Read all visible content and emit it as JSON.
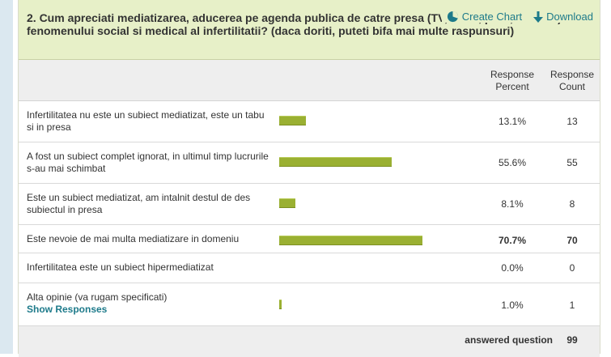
{
  "question": {
    "title": "2. Cum apreciati mediatizarea, aducerea pe agenda publica de catre presa (TV, radio, print, internet) a fenomenului social si medical al infertilitatii? (daca doriti, puteti bifa mai multe raspunsuri)",
    "create_chart_label": "Create Chart",
    "download_label": "Download"
  },
  "table": {
    "header_percent": "Response Percent",
    "header_count": "Response Count",
    "rows": [
      {
        "label": "Infertilitatea nu este un subiect mediatizat, este un tabu si in presa",
        "percent_text": "13.1%",
        "count": "13",
        "percent_value": 13.1
      },
      {
        "label": "A fost un subiect complet ignorat, in ultimul timp lucrurile s-au mai schimbat",
        "percent_text": "55.6%",
        "count": "55",
        "percent_value": 55.6
      },
      {
        "label": "Este un subiect mediatizat, am intalnit destul de des subiectul in presa",
        "percent_text": "8.1%",
        "count": "8",
        "percent_value": 8.1
      },
      {
        "label": "Este nevoie de mai multa mediatizare in domeniu",
        "percent_text": "70.7%",
        "count": "70",
        "percent_value": 70.7
      },
      {
        "label": "Infertilitatea este un subiect hipermediatizat",
        "percent_text": "0.0%",
        "count": "0",
        "percent_value": 0.0
      },
      {
        "label": "Alta opinie (va rugam specificati)",
        "percent_text": "1.0%",
        "count": "1",
        "percent_value": 1.0,
        "link": "Show Responses"
      }
    ],
    "answered_label": "answered question",
    "answered_count": "99"
  },
  "colors": {
    "bar": "#9ab032",
    "header_bg": "#e7f0c8",
    "link": "#1d7a8a"
  },
  "icons": {
    "create_chart": "pie-chart-icon",
    "download": "download-arrow-icon"
  }
}
